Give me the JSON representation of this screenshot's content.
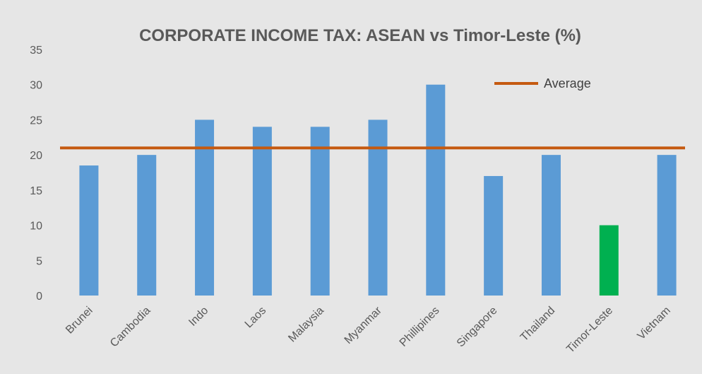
{
  "chart_data": {
    "type": "bar",
    "title": "CORPORATE INCOME TAX: ASEAN vs Timor-Leste (%)",
    "xlabel": "",
    "ylabel": "",
    "ylim": [
      0,
      35
    ],
    "yticks": [
      0,
      5,
      10,
      15,
      20,
      25,
      30,
      35
    ],
    "categories": [
      "Brunei",
      "Cambodia",
      "Indo",
      "Laos",
      "Malaysia",
      "Myanmar",
      "Phillipines",
      "Singapore",
      "Thailand",
      "Timor-Leste",
      "Vietnam"
    ],
    "values": [
      18.5,
      20,
      25,
      24,
      24,
      25,
      30,
      17,
      20,
      10,
      20
    ],
    "bar_colors": [
      "#5b9bd5",
      "#5b9bd5",
      "#5b9bd5",
      "#5b9bd5",
      "#5b9bd5",
      "#5b9bd5",
      "#5b9bd5",
      "#5b9bd5",
      "#5b9bd5",
      "#00b050",
      "#5b9bd5"
    ],
    "reference_line": {
      "name": "Average",
      "value": 21,
      "color": "#c55a11"
    },
    "legend": {
      "placement": "top-right",
      "entries": [
        "Average"
      ]
    },
    "grid": false
  }
}
